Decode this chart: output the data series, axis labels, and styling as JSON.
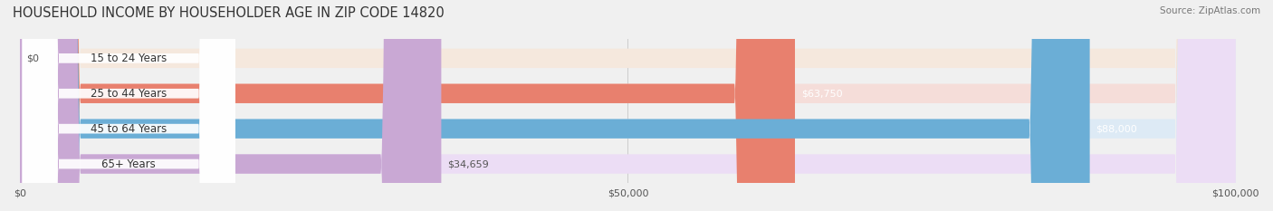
{
  "title": "HOUSEHOLD INCOME BY HOUSEHOLDER AGE IN ZIP CODE 14820",
  "source": "Source: ZipAtlas.com",
  "categories": [
    "15 to 24 Years",
    "25 to 44 Years",
    "45 to 64 Years",
    "65+ Years"
  ],
  "values": [
    0,
    63750,
    88000,
    34659
  ],
  "labels": [
    "$0",
    "$63,750",
    "$88,000",
    "$34,659"
  ],
  "bar_colors": [
    "#f5c899",
    "#e8806e",
    "#6baed6",
    "#c9a8d4"
  ],
  "bar_bg_colors": [
    "#f5e8dd",
    "#f5ddd9",
    "#ddeaf5",
    "#ecddf5"
  ],
  "label_colors": [
    "#555555",
    "#ffffff",
    "#ffffff",
    "#555555"
  ],
  "x_max": 100000,
  "x_ticks": [
    0,
    50000,
    100000
  ],
  "x_tick_labels": [
    "$0",
    "$50,000",
    "$100,000"
  ],
  "background_color": "#f0f0f0",
  "bar_height": 0.55,
  "figsize": [
    14.06,
    2.33
  ],
  "dpi": 100
}
